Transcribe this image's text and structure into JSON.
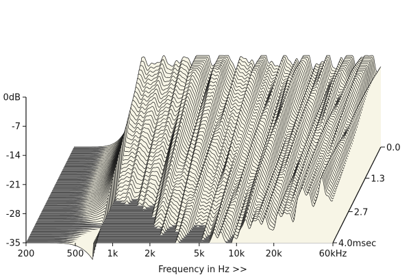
{
  "chart_data": {
    "type": "waterfall",
    "title": "",
    "xlabel": "Frequency in Hz >>",
    "ylabel": "",
    "xscale": "log",
    "xlim": [
      200,
      60000
    ],
    "ylim": [
      -35,
      0
    ],
    "zlim": [
      0,
      4.0
    ],
    "x_tick_labels": [
      "200",
      "500",
      "1k",
      "2k",
      "5k",
      "10k",
      "20k",
      "60kHz"
    ],
    "x_ticks": [
      200,
      500,
      1000,
      2000,
      5000,
      10000,
      20000,
      60000
    ],
    "y_tick_labels": [
      "0dB",
      "-7",
      "-14",
      "-21",
      "-28",
      "-35"
    ],
    "y_ticks": [
      0,
      -7,
      -14,
      -21,
      -28,
      -35
    ],
    "z_tick_labels": [
      "0.0",
      "1.3",
      "2.7",
      "4.0msec"
    ],
    "z_ticks": [
      0.0,
      1.3,
      2.7,
      4.0
    ],
    "slice_count": 60,
    "colors": {
      "surface_fill": "#f7f5e6",
      "slice_line": "#1a1a1a",
      "floor": "#8e8e8e",
      "floor_line": "#6e6e6e",
      "axis": "#111111"
    }
  }
}
